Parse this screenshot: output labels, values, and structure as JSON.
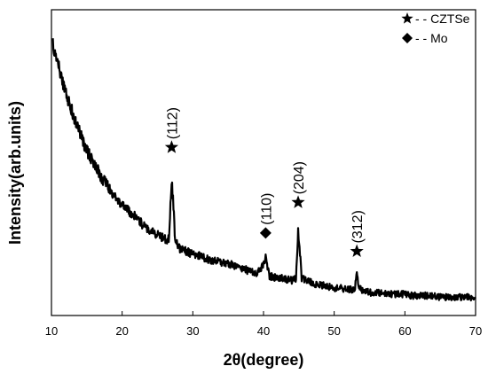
{
  "chart_data": {
    "type": "line",
    "title": "",
    "xlabel": "2θ(degree)",
    "ylabel": "Intensity(arb.units)",
    "xlim": [
      10,
      70
    ],
    "ylim": [
      0,
      100
    ],
    "x_ticks": [
      10,
      20,
      30,
      40,
      50,
      60,
      70
    ],
    "y_ticks_shown": false,
    "grid": false,
    "legend_position": "top-right",
    "legend": [
      {
        "marker": "star",
        "label": "- - CZTSe"
      },
      {
        "marker": "diamond",
        "label": "- - Mo"
      }
    ],
    "series": [
      {
        "x": [
          10.2,
          11,
          12,
          13,
          14,
          15,
          16,
          17,
          18,
          19,
          20,
          21,
          22,
          23,
          24,
          25,
          26,
          26.6,
          27.0,
          27.2,
          27.5,
          28,
          29,
          30,
          31,
          32,
          33,
          34,
          35,
          36,
          37,
          38,
          39,
          39.8,
          40.3,
          40.5,
          40.8,
          41.5,
          42,
          43,
          44,
          44.6,
          44.9,
          45.1,
          45.4,
          46,
          47,
          48,
          49,
          50,
          51,
          52,
          52.9,
          53.2,
          53.5,
          54,
          55,
          56,
          57,
          58,
          59,
          60,
          61,
          62,
          63,
          64,
          65,
          66,
          67,
          68,
          69,
          70
        ],
        "y": [
          88,
          81,
          73,
          66,
          60,
          54,
          50,
          45.5,
          42,
          39,
          36.5,
          34,
          32,
          29.5,
          28,
          26.5,
          25,
          25,
          44,
          38,
          25,
          22,
          21,
          20,
          19.5,
          18.5,
          18,
          17.5,
          17,
          16,
          15.5,
          14.5,
          14,
          16,
          19,
          17,
          13,
          12.5,
          12.5,
          12,
          11.5,
          12,
          28,
          22,
          12,
          11.5,
          10.5,
          10,
          9.5,
          9,
          9,
          8.5,
          8.5,
          14,
          9,
          8,
          7.5,
          7.5,
          7.5,
          7,
          7,
          7,
          6.5,
          6.5,
          6.5,
          6.5,
          6,
          6,
          6,
          6,
          6,
          6
        ]
      }
    ],
    "annotations": [
      {
        "marker": "star",
        "label": "(112)",
        "x": 27.0,
        "y": 55
      },
      {
        "marker": "diamond",
        "label": "(110)",
        "x": 40.3,
        "y": 27
      },
      {
        "marker": "star",
        "label": "(204)",
        "x": 44.9,
        "y": 37
      },
      {
        "marker": "star",
        "label": "(312)",
        "x": 53.2,
        "y": 21
      }
    ]
  }
}
